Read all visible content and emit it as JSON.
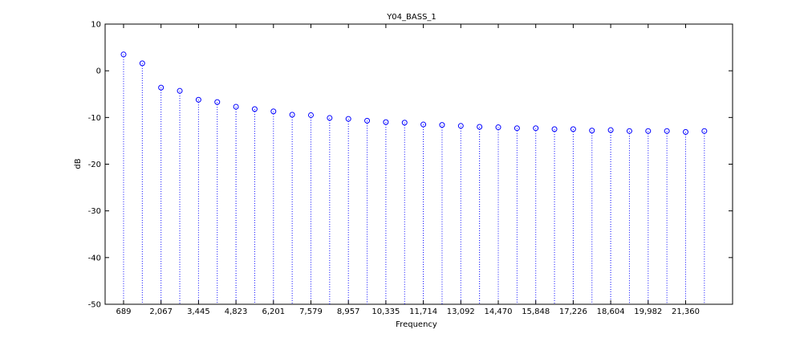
{
  "chart_data": {
    "type": "stem",
    "title": "Y04_BASS_1",
    "xlabel": "Frequency",
    "ylabel": "dB",
    "ylim": [
      -50,
      10
    ],
    "yticks": [
      10,
      0,
      -10,
      -20,
      -30,
      -40,
      -50
    ],
    "xtick_labels": [
      "689",
      "2,067",
      "3,445",
      "4,823",
      "6,201",
      "7,579",
      "8,957",
      "10,335",
      "11,714",
      "13,092",
      "14,470",
      "15,848",
      "17,226",
      "18,604",
      "19,982",
      "21,360"
    ],
    "grid": false,
    "marker_color": "#0000ff",
    "series": [
      {
        "values": [
          3.5,
          1.6,
          -3.6,
          -4.3,
          -6.2,
          -6.7,
          -7.7,
          -8.2,
          -8.7,
          -9.4,
          -9.5,
          -10.1,
          -10.3,
          -10.7,
          -11.0,
          -11.1,
          -11.5,
          -11.6,
          -11.8,
          -12.0,
          -12.1,
          -12.3,
          -12.3,
          -12.5,
          -12.5,
          -12.8,
          -12.7,
          -12.9,
          -12.9,
          -12.9,
          -13.1,
          -12.9
        ]
      }
    ]
  }
}
